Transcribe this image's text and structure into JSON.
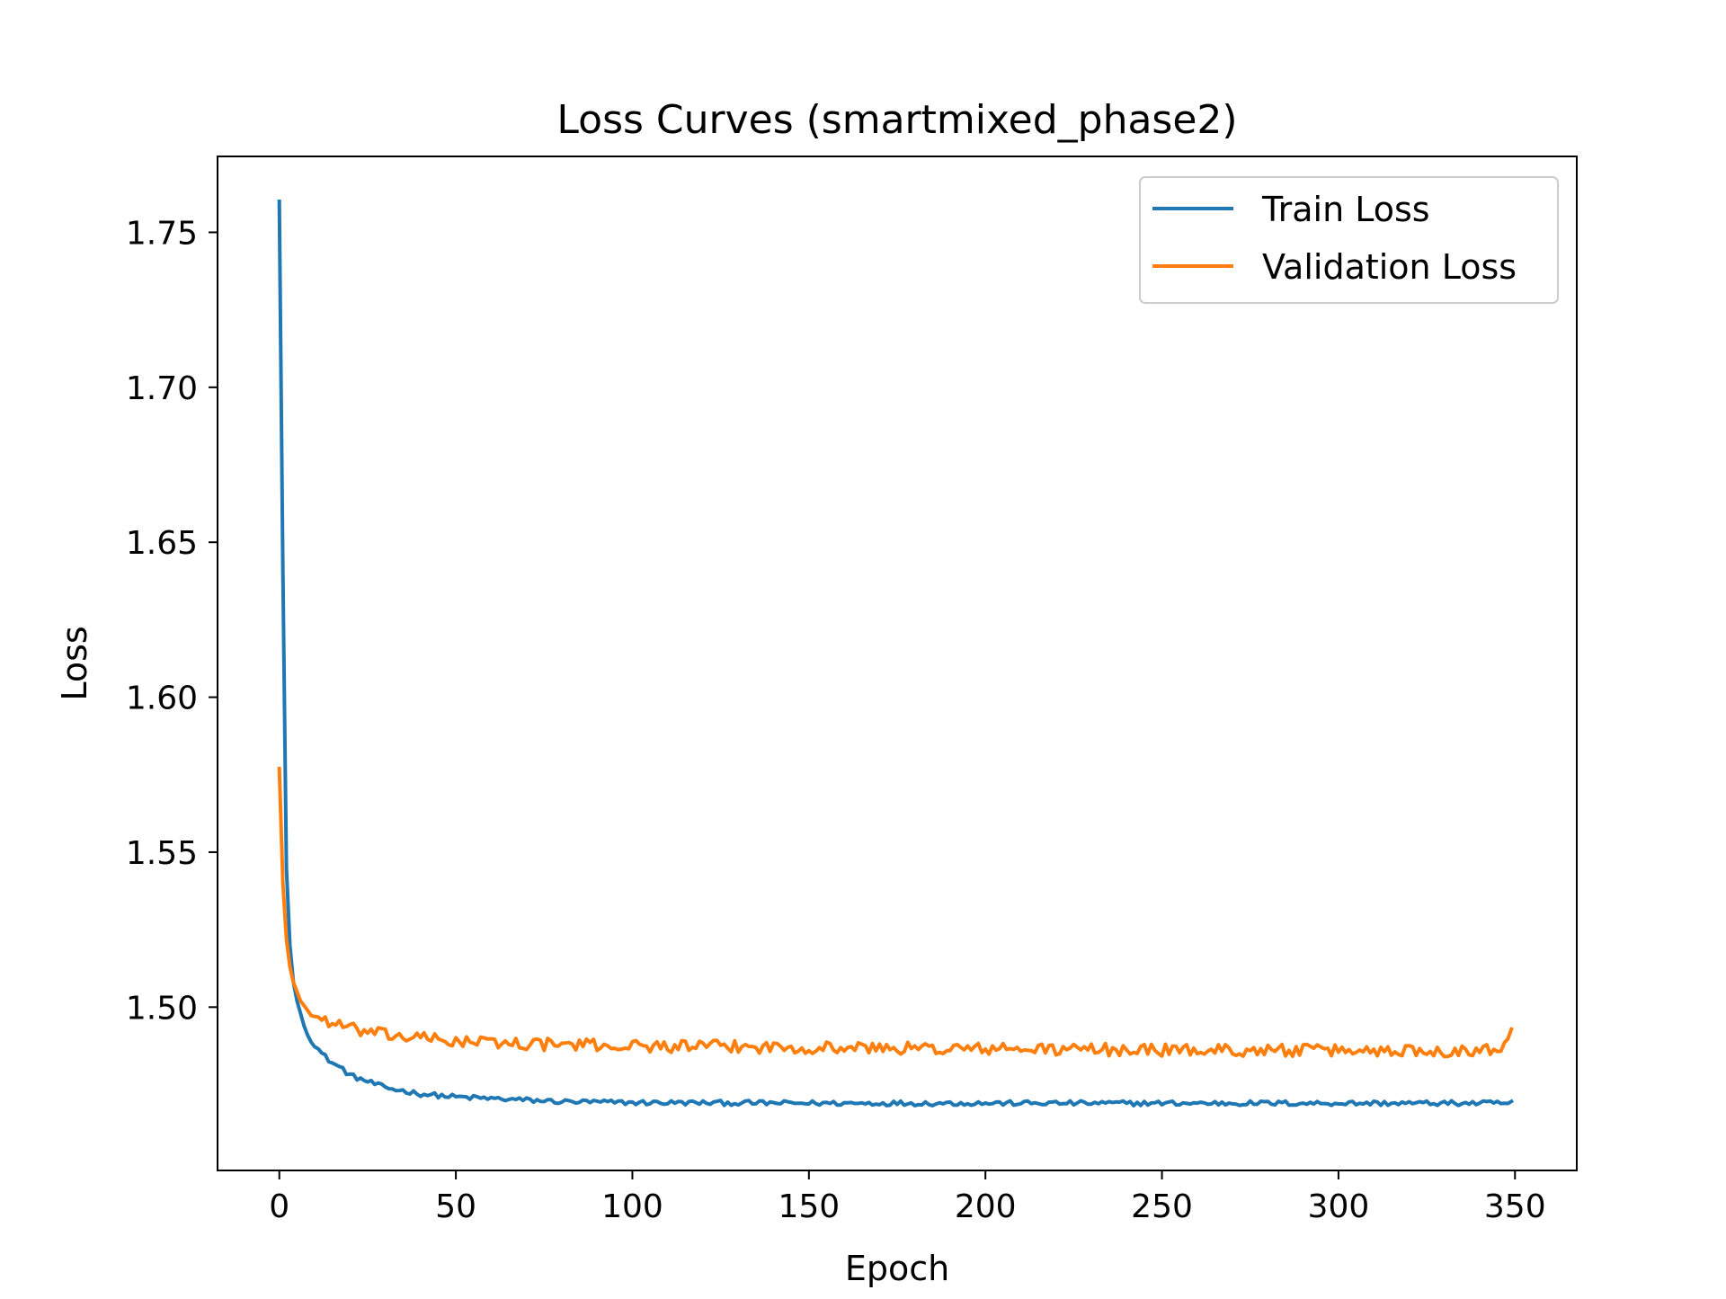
{
  "chart_data": {
    "type": "line",
    "title": "Loss Curves (smartmixed_phase2)",
    "xlabel": "Epoch",
    "ylabel": "Loss",
    "xlim": [
      -17.5,
      367.5
    ],
    "ylim": [
      1.4473,
      1.7745
    ],
    "x_ticks": [
      0,
      50,
      100,
      150,
      200,
      250,
      300,
      350
    ],
    "x_tick_labels": [
      "0",
      "50",
      "100",
      "150",
      "200",
      "250",
      "300",
      "350"
    ],
    "y_ticks": [
      1.5,
      1.55,
      1.6,
      1.65,
      1.7,
      1.75
    ],
    "y_tick_labels": [
      "1.50",
      "1.55",
      "1.60",
      "1.65",
      "1.70",
      "1.75"
    ],
    "grid": false,
    "legend": "top-right",
    "x_range": [
      0,
      349
    ],
    "series": [
      {
        "name": "Train Loss",
        "color": "#1f77b4",
        "anchors": [
          [
            0,
            1.76
          ],
          [
            1,
            1.64
          ],
          [
            2,
            1.545
          ],
          [
            3,
            1.52
          ],
          [
            4,
            1.508
          ],
          [
            5,
            1.502
          ],
          [
            6,
            1.498
          ],
          [
            7,
            1.494
          ],
          [
            8,
            1.491
          ],
          [
            10,
            1.488
          ],
          [
            12,
            1.485
          ],
          [
            15,
            1.482
          ],
          [
            18,
            1.48
          ],
          [
            20,
            1.478
          ],
          [
            25,
            1.476
          ],
          [
            30,
            1.474
          ],
          [
            35,
            1.473
          ],
          [
            40,
            1.472
          ],
          [
            45,
            1.4715
          ],
          [
            50,
            1.471
          ],
          [
            60,
            1.4705
          ],
          [
            70,
            1.47
          ],
          [
            80,
            1.4695
          ],
          [
            100,
            1.4692
          ],
          [
            150,
            1.469
          ],
          [
            200,
            1.469
          ],
          [
            250,
            1.469
          ],
          [
            300,
            1.469
          ],
          [
            349,
            1.469
          ]
        ],
        "noise": 0.0008
      },
      {
        "name": "Validation Loss",
        "color": "#ff7f0e",
        "anchors": [
          [
            0,
            1.577
          ],
          [
            1,
            1.54
          ],
          [
            2,
            1.522
          ],
          [
            3,
            1.513
          ],
          [
            4,
            1.508
          ],
          [
            5,
            1.505
          ],
          [
            6,
            1.502
          ],
          [
            8,
            1.499
          ],
          [
            10,
            1.497
          ],
          [
            15,
            1.495
          ],
          [
            20,
            1.493
          ],
          [
            30,
            1.491
          ],
          [
            40,
            1.49
          ],
          [
            50,
            1.489
          ],
          [
            75,
            1.488
          ],
          [
            100,
            1.4875
          ],
          [
            150,
            1.487
          ],
          [
            200,
            1.4865
          ],
          [
            250,
            1.4862
          ],
          [
            300,
            1.486
          ],
          [
            340,
            1.486
          ],
          [
            345,
            1.4865
          ],
          [
            348,
            1.49
          ],
          [
            349,
            1.494
          ]
        ],
        "noise": 0.002
      }
    ]
  }
}
